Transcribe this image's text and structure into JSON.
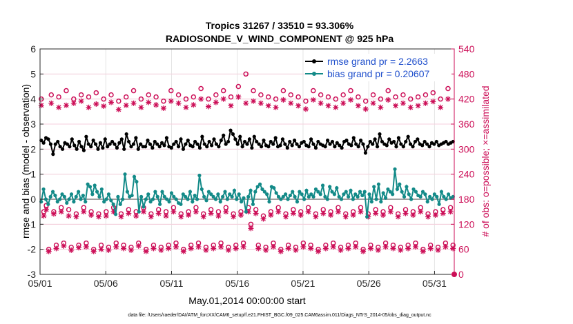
{
  "chart_data": {
    "type": "line",
    "title": "Tropics 31267 / 33510 = 93.306%",
    "subtitle": "RADIOSONDE_V_WIND_COMPONENT @ 925 hPa",
    "xlabel": "May.01,2014 00:00:00 start",
    "ylabel": "rmse and bias (model - observation)",
    "y2label": "# of obs: o=possible; ×=assimilated",
    "footnote": "data file: /Users/raeder/DAI/ATM_forcXX/CAM6_setup/f.e21.FHIST_BGC.f09_025.CAM6assim.011/Diags_NTrS_2014-05/obs_diag_output.nc",
    "xlim": [
      0,
      31.5
    ],
    "ylim": [
      -3,
      6
    ],
    "y2lim": [
      0,
      540
    ],
    "x_ticks": [
      0,
      5,
      10,
      15,
      20,
      25,
      30
    ],
    "x_tick_labels": [
      "05/01",
      "05/06",
      "05/11",
      "05/16",
      "05/21",
      "05/26",
      "05/31"
    ],
    "y_ticks": [
      -3,
      -2,
      -1,
      0,
      1,
      2,
      3,
      4,
      5,
      6
    ],
    "y2_ticks": [
      0,
      60,
      120,
      180,
      240,
      300,
      360,
      420,
      480,
      540
    ],
    "colors": {
      "rmse": "#000000",
      "bias": "#138a88",
      "obs": "#cc0e57",
      "possible_text": "#1f4fcc",
      "zero_line": "#a0a0a0"
    },
    "legend": [
      {
        "name": "rmse grand pr = 2.2663"
      },
      {
        "name": "bias grand pr = 0.20607"
      }
    ],
    "series": [
      {
        "name": "rmse",
        "values": [
          2.35,
          2.25,
          2.45,
          2.4,
          2.2,
          1.8,
          2.2,
          2.3,
          2.1,
          2.0,
          2.25,
          2.2,
          2.1,
          2.4,
          2.15,
          2.0,
          2.3,
          2.1,
          1.95,
          2.5,
          2.2,
          2.1,
          2.35,
          2.2,
          2.0,
          2.25,
          2.05,
          2.4,
          2.1,
          2.2,
          2.3,
          2.2,
          2.05,
          2.25,
          2.4,
          2.0,
          2.6,
          2.3,
          2.1,
          2.2,
          2.45,
          2.0,
          2.2,
          2.1,
          2.1,
          2.35,
          2.2,
          2.05,
          2.3,
          2.2,
          2.1,
          2.25,
          2.15,
          2.45,
          2.1,
          2.05,
          2.2,
          2.3,
          2.1,
          2.4,
          2.0,
          2.2,
          2.35,
          2.15,
          2.1,
          2.3,
          2.2,
          2.05,
          2.5,
          2.2,
          2.1,
          2.3,
          2.15,
          2.4,
          2.2,
          2.1,
          2.35,
          2.55,
          2.2,
          2.3,
          2.75,
          2.6,
          2.4,
          2.2,
          2.5,
          2.1,
          2.3,
          2.2,
          2.4,
          2.05,
          2.5,
          2.3,
          2.2,
          2.1,
          2.35,
          2.15,
          2.1,
          2.3,
          2.2,
          2.45,
          2.1,
          2.15,
          2.4,
          2.2,
          2.05,
          2.3,
          2.15,
          2.35,
          2.2,
          2.1,
          2.25,
          2.3,
          2.15,
          2.1,
          2.4,
          2.2,
          2.05,
          2.3,
          2.2,
          2.15,
          2.1,
          2.35,
          2.2,
          2.3,
          2.1,
          2.25,
          2.15,
          2.05,
          2.3,
          2.35,
          2.2,
          2.15,
          2.45,
          2.2,
          2.1,
          2.35,
          2.2,
          1.85,
          2.1,
          2.3,
          2.2,
          2.4,
          2.1,
          2.6,
          2.3,
          2.2,
          2.15,
          2.4,
          2.25,
          2.3,
          2.1,
          2.45,
          2.2,
          2.1,
          2.3,
          2.5,
          2.2,
          2.1,
          2.3,
          2.4,
          2.2,
          2.15,
          2.3,
          2.2,
          2.1,
          2.25,
          2.2,
          2.3,
          2.15,
          2.2,
          2.25,
          2.3,
          2.2,
          2.25,
          2.3
        ]
      },
      {
        "name": "bias",
        "values": [
          -0.1,
          0.4,
          0.0,
          -0.2,
          0.1,
          0.3,
          0.15,
          -0.1,
          0.0,
          0.2,
          0.1,
          -0.15,
          0.0,
          0.2,
          -0.1,
          0.1,
          0.3,
          0.0,
          0.15,
          -0.1,
          0.6,
          0.5,
          0.2,
          0.55,
          0.3,
          0.1,
          0.4,
          -0.1,
          0.0,
          0.2,
          -0.05,
          -0.2,
          -0.6,
          0.1,
          -0.2,
          0.0,
          1.0,
          0.3,
          0.1,
          0.15,
          0.9,
          0.7,
          -0.5,
          0.1,
          -0.3,
          0.0,
          0.2,
          -0.1,
          0.0,
          0.3,
          0.1,
          -0.2,
          0.3,
          0.1,
          0.0,
          -0.1,
          0.25,
          0.1,
          0.0,
          -0.15,
          -0.2,
          0.2,
          0.1,
          0.0,
          0.3,
          -0.1,
          0.15,
          0.0,
          0.95,
          0.4,
          0.1,
          -0.05,
          0.3,
          0.2,
          0.1,
          0.0,
          0.2,
          -0.1,
          0.1,
          0.3,
          0.0,
          0.2,
          0.1,
          0.35,
          0.0,
          0.2,
          -0.1,
          0.05,
          -0.5,
          0.1,
          0.35,
          -0.2,
          0.3,
          0.5,
          0.6,
          0.4,
          0.3,
          0.2,
          -0.1,
          0.5,
          0.45,
          0.25,
          0.1,
          0.0,
          0.1,
          0.2,
          0.0,
          0.15,
          0.3,
          0.1,
          -0.1,
          0.3,
          0.2,
          0.0,
          0.35,
          0.1,
          0.2,
          0.1,
          0.4,
          0.3,
          0.2,
          0.55,
          0.1,
          0.0,
          0.5,
          0.3,
          0.2,
          0.45,
          0.1,
          0.0,
          0.2,
          0.3,
          0.1,
          0.35,
          0.0,
          0.2,
          0.1,
          0.3,
          0.15,
          0.3,
          -0.7,
          0.2,
          -0.1,
          0.5,
          0.0,
          0.6,
          -0.1,
          0.25,
          0.05,
          0.4,
          0.3,
          0.2,
          1.2,
          0.4,
          0.6,
          0.3,
          0.1,
          0.5,
          0.2,
          0.0,
          0.4,
          0.3,
          0.15,
          0.1,
          0.3,
          0.2,
          -0.1,
          0.1,
          0.0,
          0.2,
          0.1,
          -0.2,
          0.3,
          0.1,
          0.0,
          0.2,
          0.05,
          0.1
        ]
      },
      {
        "name": "possible",
        "axis": "y2",
        "values": [
          420,
          150,
          165,
          60,
          430,
          150,
          70,
          425,
          160,
          75,
          440,
          155,
          65,
          420,
          145,
          70,
          430,
          160,
          75,
          425,
          150,
          60,
          435,
          145,
          70,
          420,
          150,
          65,
          430,
          160,
          75,
          415,
          145,
          70,
          425,
          155,
          65,
          440,
          150,
          75,
          420,
          160,
          60,
          430,
          145,
          70,
          425,
          155,
          65,
          415,
          150,
          70,
          440,
          160,
          75,
          430,
          145,
          60,
          420,
          150,
          70,
          425,
          160,
          75,
          445,
          145,
          65,
          420,
          155,
          70,
          430,
          150,
          75,
          440,
          160,
          65,
          425,
          145,
          70,
          450,
          150,
          75,
          480,
          160,
          120,
          440,
          155,
          70,
          430,
          140,
          65,
          425,
          150,
          75,
          420,
          160,
          60,
          440,
          145,
          70,
          430,
          155,
          65,
          425,
          150,
          75,
          415,
          160,
          70,
          440,
          145,
          60,
          430,
          155,
          70,
          425,
          150,
          75,
          420,
          160,
          65,
          430,
          145,
          70,
          440,
          150,
          75,
          425,
          160,
          60,
          415,
          145,
          70,
          430,
          155,
          65,
          420,
          150,
          75,
          440,
          160,
          70,
          425,
          145,
          65,
          430,
          155,
          70,
          420,
          150,
          75,
          425,
          160,
          60,
          430,
          145,
          70,
          435,
          150,
          65,
          420,
          155,
          75,
          445,
          160,
          70
        ]
      },
      {
        "name": "assimilated",
        "axis": "y2",
        "values": [
          405,
          140,
          155,
          55,
          410,
          145,
          62,
          400,
          150,
          68,
          405,
          140,
          58,
          410,
          138,
          64,
          415,
          150,
          66,
          400,
          142,
          55,
          408,
          138,
          60,
          403,
          140,
          58,
          412,
          150,
          66,
          395,
          138,
          62,
          405,
          146,
          58,
          410,
          140,
          68,
          400,
          150,
          55,
          412,
          138,
          62,
          406,
          146,
          58,
          398,
          140,
          62,
          415,
          150,
          66,
          410,
          138,
          55,
          400,
          142,
          62,
          406,
          150,
          66,
          420,
          138,
          58,
          402,
          146,
          62,
          412,
          140,
          66,
          420,
          150,
          58,
          404,
          138,
          62,
          425,
          142,
          66,
          410,
          150,
          110,
          415,
          146,
          62,
          410,
          133,
          58,
          404,
          142,
          66,
          400,
          150,
          55,
          418,
          138,
          62,
          410,
          146,
          58,
          404,
          142,
          66,
          396,
          150,
          62,
          418,
          138,
          55,
          410,
          146,
          62,
          404,
          142,
          66,
          400,
          150,
          58,
          410,
          138,
          62,
          418,
          142,
          66,
          404,
          150,
          55,
          396,
          138,
          62,
          410,
          146,
          58,
          400,
          142,
          66,
          418,
          150,
          62,
          404,
          138,
          58,
          410,
          146,
          62,
          400,
          142,
          66,
          404,
          150,
          55,
          410,
          138,
          62,
          414,
          142,
          58,
          400,
          146,
          66,
          420,
          150,
          62
        ]
      }
    ]
  }
}
